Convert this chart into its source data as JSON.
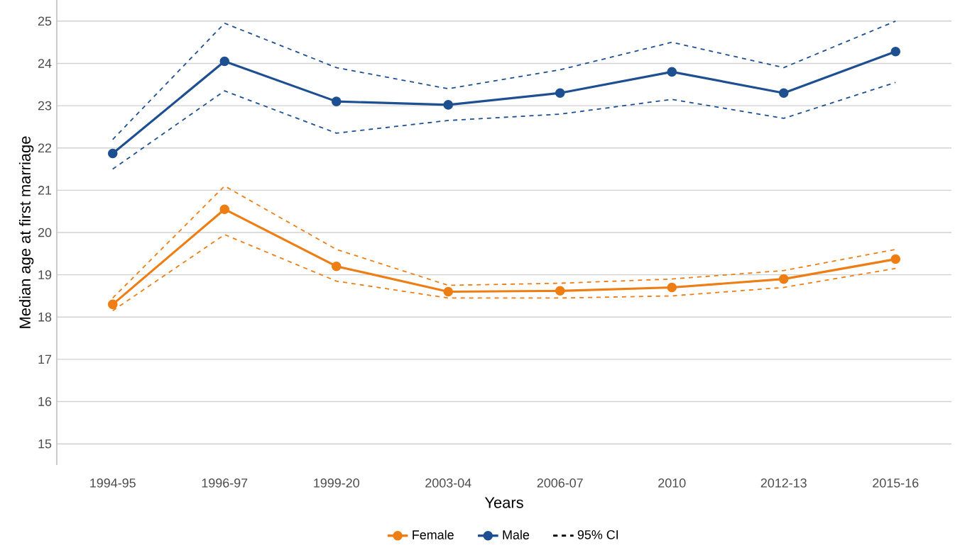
{
  "chart_data": {
    "type": "line",
    "xlabel": "Years",
    "ylabel": "Median age at first marriage",
    "categories": [
      "1994-95",
      "1996-97",
      "1999-20",
      "2003-04",
      "2006-07",
      "2010",
      "2012-13",
      "2015-16"
    ],
    "series": [
      {
        "color": "#ee7d13",
        "line_style": "dashed",
        "marker": "none",
        "values": [
          18.45,
          21.1,
          19.6,
          18.75,
          18.8,
          18.9,
          19.1,
          19.6
        ]
      },
      {
        "color": "#ee7d13",
        "line_style": "dashed",
        "marker": "none",
        "values": [
          18.15,
          19.95,
          18.85,
          18.45,
          18.45,
          18.5,
          18.7,
          19.15
        ]
      },
      {
        "color": "#1d4f91",
        "line_style": "dashed",
        "marker": "none",
        "values": [
          22.2,
          24.95,
          23.9,
          23.4,
          23.85,
          24.5,
          23.9,
          25.0
        ]
      },
      {
        "color": "#1d4f91",
        "line_style": "dashed",
        "marker": "none",
        "values": [
          21.5,
          23.35,
          22.35,
          22.65,
          22.8,
          23.15,
          22.7,
          23.55
        ]
      },
      {
        "name": "Female",
        "color": "#ee7d13",
        "values": [
          18.3,
          20.55,
          19.2,
          18.6,
          18.62,
          18.7,
          18.9,
          19.37
        ]
      },
      {
        "name": "Male",
        "color": "#1d4f91",
        "values": [
          21.87,
          24.05,
          23.1,
          23.02,
          23.3,
          23.8,
          23.3,
          24.28
        ]
      },
      {
        "name": "95% CI",
        "color": "#000000",
        "line_style": "dashed",
        "marker": "none",
        "values": [
          null,
          null,
          null,
          null,
          null,
          null,
          null,
          null
        ]
      }
    ],
    "ylim": [
      14.5,
      25.5
    ],
    "yticks": [
      15,
      16,
      17,
      18,
      19,
      20,
      21,
      22,
      23,
      24,
      25
    ],
    "grid": "y",
    "legend": "bottom",
    "marker": "circle",
    "line_style": "solid"
  }
}
